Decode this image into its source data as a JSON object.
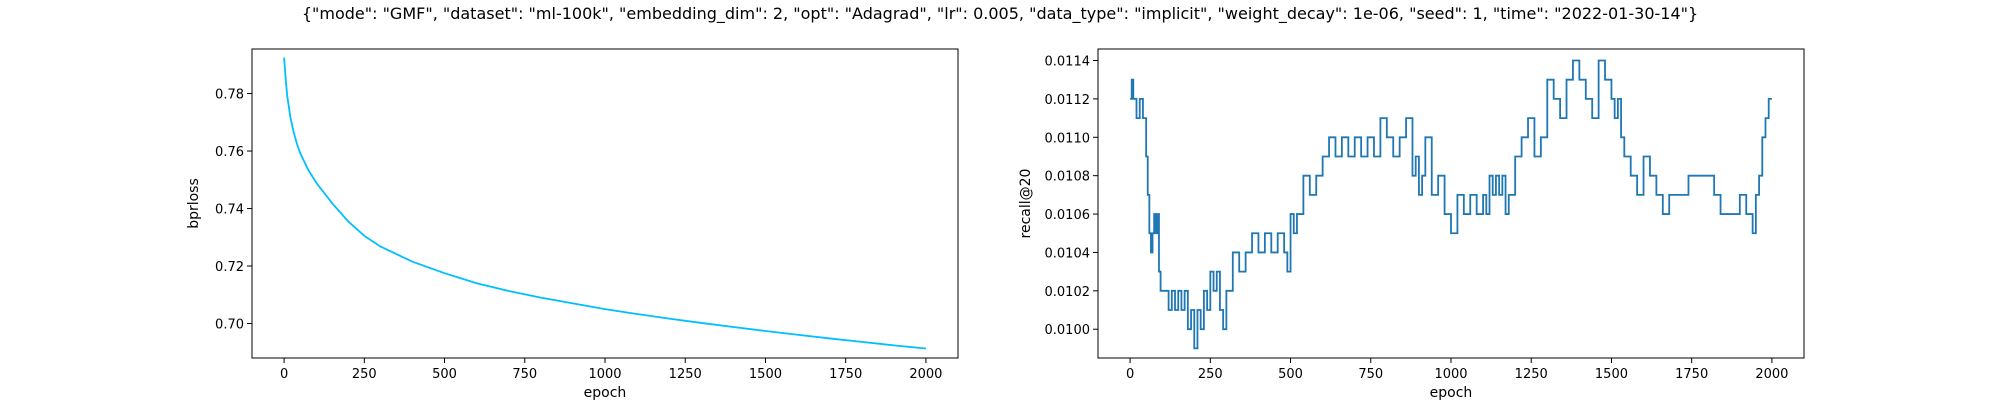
{
  "figure": {
    "title": "{\"mode\": \"GMF\", \"dataset\": \"ml-100k\", \"embedding_dim\": 2, \"opt\": \"Adagrad\", \"lr\": 0.005, \"data_type\": \"implicit\", \"weight_decay\": 1e-06, \"seed\": 1, \"time\": \"2022-01-30-14\"}"
  },
  "chart_data": [
    {
      "type": "line",
      "title": "",
      "xlabel": "epoch",
      "ylabel": "bprloss",
      "xlim": [
        -100,
        2100
      ],
      "ylim": [
        0.688,
        0.7955
      ],
      "xticks": [
        0,
        250,
        500,
        750,
        1000,
        1250,
        1500,
        1750,
        2000
      ],
      "yticks": [
        0.7,
        0.72,
        0.74,
        0.76,
        0.78
      ],
      "ytick_labels": [
        "0.70",
        "0.72",
        "0.74",
        "0.76",
        "0.78"
      ],
      "grid": false,
      "series": [
        {
          "color": "#00bfff",
          "x": [
            0,
            5,
            10,
            20,
            30,
            40,
            50,
            75,
            100,
            150,
            200,
            250,
            300,
            400,
            500,
            600,
            700,
            800,
            900,
            1000,
            1100,
            1200,
            1300,
            1400,
            1500,
            1600,
            1700,
            1800,
            1900,
            2000
          ],
          "y": [
            0.7925,
            0.785,
            0.779,
            0.7715,
            0.7665,
            0.7625,
            0.7593,
            0.7535,
            0.749,
            0.7418,
            0.7355,
            0.7305,
            0.7268,
            0.7215,
            0.7175,
            0.714,
            0.7113,
            0.709,
            0.707,
            0.705,
            0.7033,
            0.7017,
            0.7002,
            0.6988,
            0.6974,
            0.6961,
            0.6948,
            0.6936,
            0.6924,
            0.6913
          ]
        }
      ]
    },
    {
      "type": "line",
      "title": "",
      "xlabel": "epoch",
      "ylabel": "recall@20",
      "xlim": [
        -100,
        2100
      ],
      "ylim": [
        0.00985,
        0.01146
      ],
      "xticks": [
        0,
        250,
        500,
        750,
        1000,
        1250,
        1500,
        1750,
        2000
      ],
      "yticks": [
        0.01,
        0.0102,
        0.0104,
        0.0106,
        0.0108,
        0.011,
        0.0112,
        0.0114
      ],
      "ytick_labels": [
        "0.0100",
        "0.0102",
        "0.0104",
        "0.0106",
        "0.0108",
        "0.0110",
        "0.0112",
        "0.0114"
      ],
      "grid": false,
      "series": [
        {
          "color": "#1f77b4",
          "step": true,
          "x": [
            0,
            5,
            10,
            20,
            30,
            40,
            50,
            55,
            60,
            65,
            70,
            75,
            80,
            85,
            90,
            95,
            100,
            110,
            120,
            130,
            140,
            150,
            160,
            170,
            180,
            190,
            200,
            210,
            220,
            230,
            240,
            250,
            260,
            270,
            280,
            290,
            300,
            320,
            340,
            360,
            380,
            400,
            420,
            440,
            460,
            480,
            490,
            500,
            510,
            520,
            540,
            560,
            580,
            600,
            620,
            640,
            660,
            680,
            700,
            720,
            740,
            760,
            780,
            800,
            820,
            840,
            860,
            880,
            890,
            900,
            910,
            920,
            940,
            960,
            980,
            1000,
            1020,
            1040,
            1060,
            1080,
            1100,
            1110,
            1120,
            1130,
            1140,
            1150,
            1160,
            1170,
            1180,
            1200,
            1220,
            1240,
            1260,
            1280,
            1300,
            1320,
            1340,
            1360,
            1380,
            1400,
            1420,
            1440,
            1460,
            1480,
            1500,
            1510,
            1520,
            1530,
            1540,
            1560,
            1580,
            1600,
            1620,
            1640,
            1660,
            1680,
            1700,
            1720,
            1740,
            1760,
            1780,
            1800,
            1820,
            1840,
            1860,
            1880,
            1900,
            1920,
            1940,
            1950,
            1960,
            1970,
            1980,
            1990,
            2000
          ],
          "y": [
            0.0112,
            0.0113,
            0.0112,
            0.0111,
            0.0112,
            0.0111,
            0.0109,
            0.0107,
            0.0105,
            0.0104,
            0.0105,
            0.0106,
            0.0105,
            0.0106,
            0.0103,
            0.0102,
            0.0102,
            0.0102,
            0.0101,
            0.0102,
            0.0101,
            0.0102,
            0.0101,
            0.0102,
            0.01,
            0.0101,
            0.0099,
            0.0101,
            0.01,
            0.0102,
            0.0101,
            0.0103,
            0.0102,
            0.0103,
            0.0101,
            0.01,
            0.0102,
            0.0104,
            0.0103,
            0.0104,
            0.0105,
            0.0104,
            0.0105,
            0.0104,
            0.0105,
            0.0104,
            0.0103,
            0.0106,
            0.0105,
            0.0106,
            0.0108,
            0.0107,
            0.0108,
            0.0109,
            0.011,
            0.0109,
            0.011,
            0.0109,
            0.011,
            0.0109,
            0.011,
            0.0109,
            0.0111,
            0.011,
            0.0109,
            0.011,
            0.0111,
            0.0108,
            0.0109,
            0.0107,
            0.0108,
            0.011,
            0.0107,
            0.0108,
            0.0106,
            0.0105,
            0.0107,
            0.0106,
            0.0107,
            0.0106,
            0.0107,
            0.0106,
            0.0108,
            0.0107,
            0.0108,
            0.0107,
            0.0108,
            0.0106,
            0.0107,
            0.0109,
            0.011,
            0.0111,
            0.0109,
            0.011,
            0.0113,
            0.0112,
            0.0111,
            0.0113,
            0.0114,
            0.0113,
            0.0112,
            0.0111,
            0.0114,
            0.0113,
            0.0112,
            0.0111,
            0.0112,
            0.011,
            0.0109,
            0.0108,
            0.0107,
            0.0109,
            0.0108,
            0.0107,
            0.0106,
            0.0107,
            0.0107,
            0.0107,
            0.0108,
            0.0108,
            0.0108,
            0.0108,
            0.0107,
            0.0106,
            0.0106,
            0.0106,
            0.0107,
            0.0106,
            0.0105,
            0.0107,
            0.0108,
            0.011,
            0.0111,
            0.0112,
            0.0112
          ]
        }
      ]
    }
  ]
}
